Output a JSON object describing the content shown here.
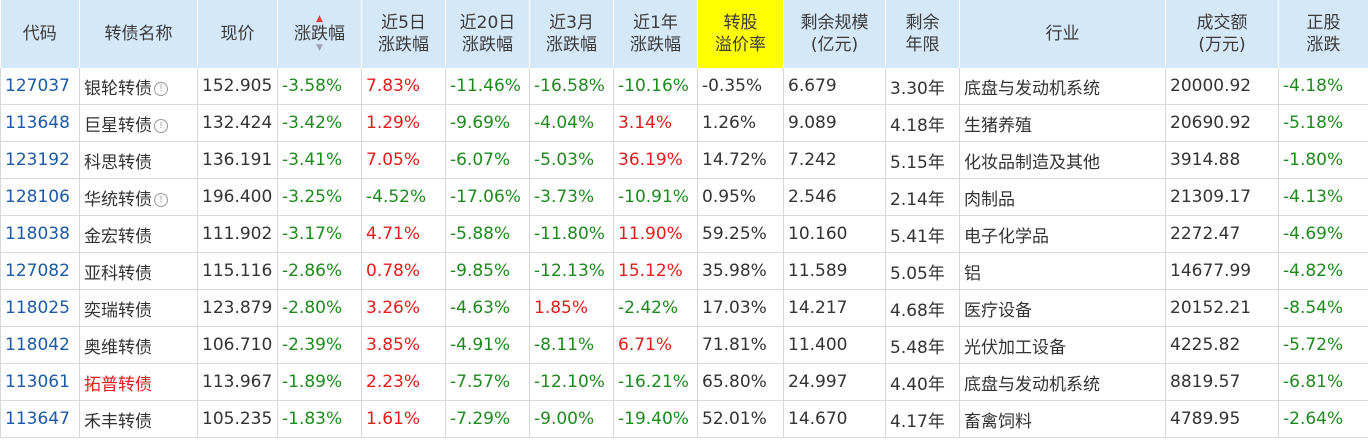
{
  "headers": {
    "code": "代码",
    "name": "转债名称",
    "price": "现价",
    "change": "涨跌幅",
    "chg5d": [
      "近5日",
      "涨跌幅"
    ],
    "chg20d": [
      "近20日",
      "涨跌幅"
    ],
    "chg3m": [
      "近3月",
      "涨跌幅"
    ],
    "chg1y": [
      "近1年",
      "涨跌幅"
    ],
    "premium": [
      "转股",
      "溢价率"
    ],
    "scale": [
      "剩余规模",
      "(亿元)"
    ],
    "years": [
      "剩余",
      "年限"
    ],
    "industry": "行业",
    "turnover": [
      "成交额",
      "(万元)"
    ],
    "stock_chg": [
      "正股",
      "涨跌"
    ]
  },
  "sort_icons": {
    "active": "sort-up-icon",
    "inactive": "sort-down-icon"
  },
  "colors": {
    "header_bg": "#d5e8f8",
    "highlight": "#ffff00",
    "up": "#e31c1c",
    "down": "#1e8a1e",
    "code": "#1c5aa6"
  },
  "rows": [
    {
      "code": "127037",
      "name": "银轮转债",
      "info": true,
      "name_red": false,
      "price": "152.905",
      "change": "-3.58%",
      "chg5d": "7.83%",
      "chg20d": "-11.46%",
      "chg3m": "-16.58%",
      "chg1y": "-10.16%",
      "premium": "-0.35%",
      "scale": "6.679",
      "years": "3.30年",
      "industry": "底盘与发动机系统",
      "turnover": "20000.92",
      "stock_chg": "-4.18%"
    },
    {
      "code": "113648",
      "name": "巨星转债",
      "info": true,
      "name_red": false,
      "price": "132.424",
      "change": "-3.42%",
      "chg5d": "1.29%",
      "chg20d": "-9.69%",
      "chg3m": "-4.04%",
      "chg1y": "3.14%",
      "premium": "1.26%",
      "scale": "9.089",
      "years": "4.18年",
      "industry": "生猪养殖",
      "turnover": "20690.92",
      "stock_chg": "-5.18%"
    },
    {
      "code": "123192",
      "name": "科思转债",
      "info": false,
      "name_red": false,
      "price": "136.191",
      "change": "-3.41%",
      "chg5d": "7.05%",
      "chg20d": "-6.07%",
      "chg3m": "-5.03%",
      "chg1y": "36.19%",
      "premium": "14.72%",
      "scale": "7.242",
      "years": "5.15年",
      "industry": "化妆品制造及其他",
      "turnover": "3914.88",
      "stock_chg": "-1.80%"
    },
    {
      "code": "128106",
      "name": "华统转债",
      "info": true,
      "name_red": false,
      "price": "196.400",
      "change": "-3.25%",
      "chg5d": "-4.52%",
      "chg20d": "-17.06%",
      "chg3m": "-3.73%",
      "chg1y": "-10.91%",
      "premium": "0.95%",
      "scale": "2.546",
      "years": "2.14年",
      "industry": "肉制品",
      "turnover": "21309.17",
      "stock_chg": "-4.13%"
    },
    {
      "code": "118038",
      "name": "金宏转债",
      "info": false,
      "name_red": false,
      "price": "111.902",
      "change": "-3.17%",
      "chg5d": "4.71%",
      "chg20d": "-5.88%",
      "chg3m": "-11.80%",
      "chg1y": "11.90%",
      "premium": "59.25%",
      "scale": "10.160",
      "years": "5.41年",
      "industry": "电子化学品",
      "turnover": "2272.47",
      "stock_chg": "-4.69%"
    },
    {
      "code": "127082",
      "name": "亚科转债",
      "info": false,
      "name_red": false,
      "price": "115.116",
      "change": "-2.86%",
      "chg5d": "0.78%",
      "chg20d": "-9.85%",
      "chg3m": "-12.13%",
      "chg1y": "15.12%",
      "premium": "35.98%",
      "scale": "11.589",
      "years": "5.05年",
      "industry": "铝",
      "turnover": "14677.99",
      "stock_chg": "-4.82%"
    },
    {
      "code": "118025",
      "name": "奕瑞转债",
      "info": false,
      "name_red": false,
      "price": "123.879",
      "change": "-2.80%",
      "chg5d": "3.26%",
      "chg20d": "-4.63%",
      "chg3m": "1.85%",
      "chg1y": "-2.42%",
      "premium": "17.03%",
      "scale": "14.217",
      "years": "4.68年",
      "industry": "医疗设备",
      "turnover": "20152.21",
      "stock_chg": "-8.54%"
    },
    {
      "code": "118042",
      "name": "奥维转债",
      "info": false,
      "name_red": false,
      "price": "106.710",
      "change": "-2.39%",
      "chg5d": "3.85%",
      "chg20d": "-4.91%",
      "chg3m": "-8.11%",
      "chg1y": "6.71%",
      "premium": "71.81%",
      "scale": "11.400",
      "years": "5.48年",
      "industry": "光伏加工设备",
      "turnover": "4225.82",
      "stock_chg": "-5.72%"
    },
    {
      "code": "113061",
      "name": "拓普转债",
      "info": false,
      "name_red": true,
      "price": "113.967",
      "change": "-1.89%",
      "chg5d": "2.23%",
      "chg20d": "-7.57%",
      "chg3m": "-12.10%",
      "chg1y": "-16.21%",
      "premium": "65.80%",
      "scale": "24.997",
      "years": "4.40年",
      "industry": "底盘与发动机系统",
      "turnover": "8819.57",
      "stock_chg": "-6.81%"
    },
    {
      "code": "113647",
      "name": "禾丰转债",
      "info": false,
      "name_red": false,
      "price": "105.235",
      "change": "-1.83%",
      "chg5d": "1.61%",
      "chg20d": "-7.29%",
      "chg3m": "-9.00%",
      "chg1y": "-19.40%",
      "premium": "52.01%",
      "scale": "14.670",
      "years": "4.17年",
      "industry": "畜禽饲料",
      "turnover": "4789.95",
      "stock_chg": "-2.64%"
    }
  ]
}
